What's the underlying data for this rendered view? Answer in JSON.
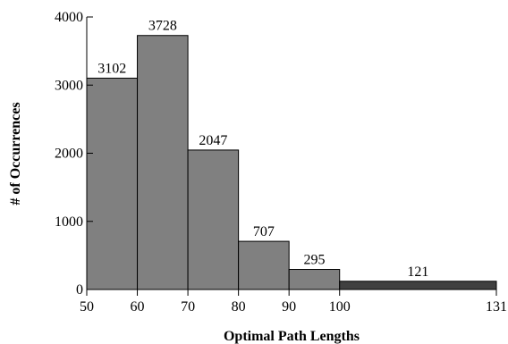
{
  "chart_data": {
    "type": "bar",
    "bins": [
      {
        "start": 50,
        "end": 60,
        "value": 3102
      },
      {
        "start": 60,
        "end": 70,
        "value": 3728
      },
      {
        "start": 70,
        "end": 80,
        "value": 2047
      },
      {
        "start": 80,
        "end": 90,
        "value": 707
      },
      {
        "start": 90,
        "end": 100,
        "value": 295
      },
      {
        "start": 100,
        "end": 131,
        "value": 121
      }
    ],
    "data_labels": [
      "3102",
      "3728",
      "2047",
      "707",
      "295",
      "121"
    ],
    "bar_colors": [
      "#808080",
      "#808080",
      "#808080",
      "#808080",
      "#808080",
      "#404040"
    ],
    "xlabel": "Optimal Path Lengths",
    "ylabel": "# of Occurrences",
    "xlim": [
      50,
      131
    ],
    "ylim": [
      0,
      4000
    ],
    "x_tick_values": [
      50,
      60,
      70,
      80,
      90,
      100,
      131
    ],
    "x_tick_labels": [
      "50",
      "60",
      "70",
      "80",
      "90",
      "100",
      "131"
    ],
    "y_tick_values": [
      0,
      1000,
      2000,
      3000,
      4000
    ],
    "y_tick_labels": [
      "0",
      "1000",
      "2000",
      "3000",
      "4000"
    ],
    "grid": false,
    "legend": "none"
  }
}
